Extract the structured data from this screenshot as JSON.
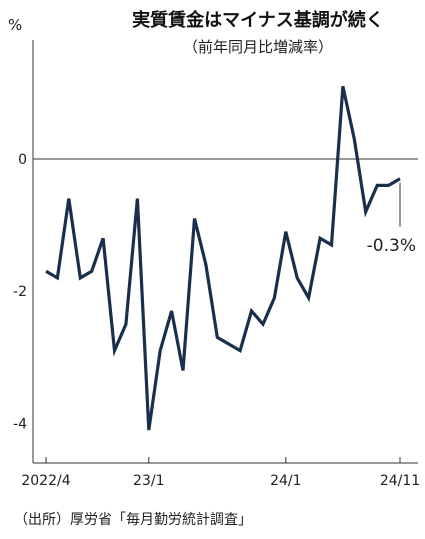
{
  "chart_data": {
    "type": "line",
    "title": "実質賃金はマイナス基調が続く",
    "subtitle": "（前年同月比増減率）",
    "y_unit": "%",
    "ylim": [
      -4.6,
      1.8
    ],
    "y_ticks": [
      0,
      -2,
      -4
    ],
    "y_tick_labels": [
      "0",
      "-2",
      "-4"
    ],
    "grid": false,
    "series": [
      {
        "color": "#1a2f4b",
        "values": [
          -1.7,
          -1.8,
          -0.6,
          -1.8,
          -1.7,
          -1.2,
          -2.9,
          -2.5,
          -0.6,
          -4.1,
          -2.9,
          -2.3,
          -3.2,
          -0.9,
          -1.6,
          -2.7,
          -2.8,
          -2.9,
          -2.3,
          -2.5,
          -2.1,
          -1.1,
          -1.8,
          -2.1,
          -1.2,
          -1.3,
          1.1,
          0.3,
          -0.8,
          -0.4,
          -0.4,
          -0.3
        ]
      }
    ],
    "x_start": "2022/4",
    "x_tick_labels": [
      {
        "index": 0,
        "label": "2022/4"
      },
      {
        "index": 9,
        "label": "23/1"
      },
      {
        "index": 21,
        "label": "24/1"
      },
      {
        "index": 31,
        "label": "24/11"
      }
    ],
    "annotation": {
      "index": 31,
      "text": "-0.3%"
    },
    "source": "（出所）厚労省「毎月勤労統計調査」"
  }
}
